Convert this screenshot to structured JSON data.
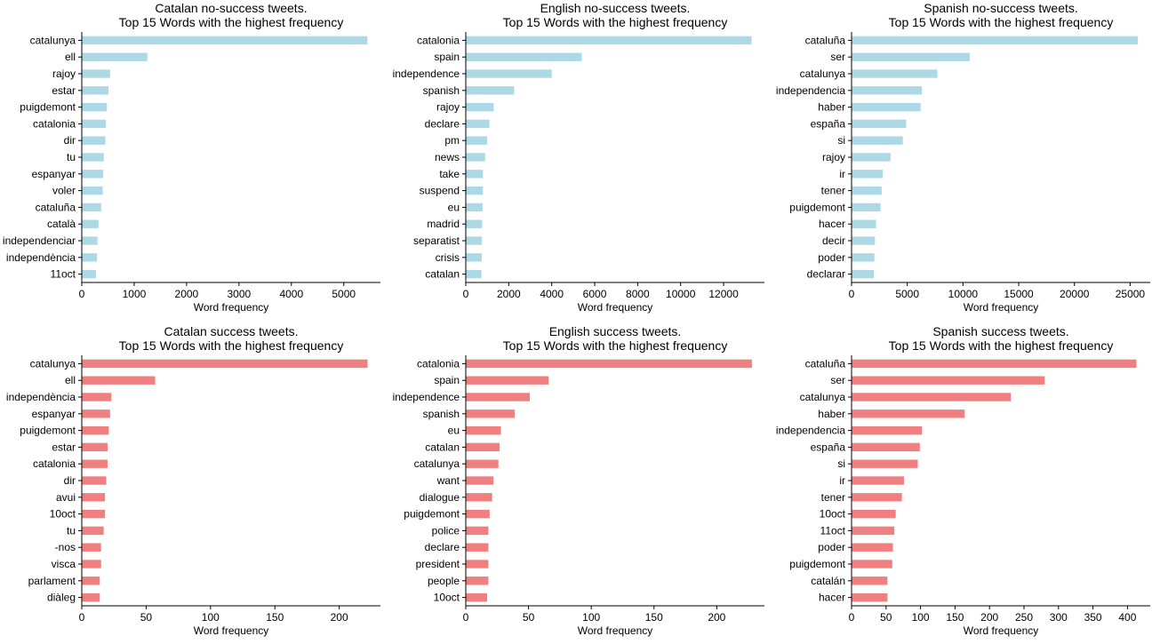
{
  "colors": {
    "no_success": "#add8e6",
    "success": "#f08080"
  },
  "chart_data": [
    {
      "type": "bar",
      "orientation": "horizontal",
      "title_line1": "Catalan no-success tweets.",
      "title_line2": "Top 15 Words with the highest frequency",
      "xlabel": "Word frequency",
      "xlim": [
        0,
        5700
      ],
      "xticks": [
        0,
        1000,
        2000,
        3000,
        4000,
        5000
      ],
      "color_key": "no_success",
      "categories": [
        "catalunya",
        "ell",
        "rajoy",
        "estar",
        "puigdemont",
        "catalonia",
        "dir",
        "tu",
        "espanyar",
        "voler",
        "cataluña",
        "català",
        "independenciar",
        "independència",
        "11oct"
      ],
      "values": [
        5450,
        1250,
        540,
        510,
        480,
        460,
        450,
        420,
        410,
        400,
        370,
        320,
        300,
        290,
        270
      ]
    },
    {
      "type": "bar",
      "orientation": "horizontal",
      "title_line1": "English no-success tweets.",
      "title_line2": "Top 15 Words with the highest frequency",
      "xlabel": "Word frequency",
      "xlim": [
        0,
        13900
      ],
      "xticks": [
        0,
        2000,
        4000,
        6000,
        8000,
        10000,
        12000
      ],
      "color_key": "no_success",
      "categories": [
        "catalonia",
        "spain",
        "independence",
        "spanish",
        "rajoy",
        "declare",
        "pm",
        "news",
        "take",
        "suspend",
        "eu",
        "madrid",
        "separatist",
        "crisis",
        "catalan"
      ],
      "values": [
        13300,
        5400,
        4000,
        2250,
        1300,
        1100,
        1000,
        900,
        800,
        800,
        780,
        760,
        750,
        740,
        730
      ]
    },
    {
      "type": "bar",
      "orientation": "horizontal",
      "title_line1": "Spanish no-success tweets.",
      "title_line2": "Top 15 Words with the highest frequency",
      "xlabel": "Word frequency",
      "xlim": [
        0,
        26800
      ],
      "xticks": [
        0,
        5000,
        10000,
        15000,
        20000,
        25000
      ],
      "color_key": "no_success",
      "categories": [
        "cataluña",
        "ser",
        "catalunya",
        "independencia",
        "haber",
        "españa",
        "si",
        "rajoy",
        "ir",
        "tener",
        "puigdemont",
        "hacer",
        "decir",
        "poder",
        "declarar"
      ],
      "values": [
        25700,
        10600,
        7700,
        6300,
        6200,
        4900,
        4600,
        3500,
        2800,
        2700,
        2600,
        2200,
        2100,
        2050,
        2000
      ]
    },
    {
      "type": "bar",
      "orientation": "horizontal",
      "title_line1": "Catalan success tweets.",
      "title_line2": "Top 15 Words with the highest frequency",
      "xlabel": "Word frequency",
      "xlim": [
        0,
        232
      ],
      "xticks": [
        0,
        50,
        100,
        150,
        200
      ],
      "color_key": "success",
      "categories": [
        "catalunya",
        "ell",
        "independència",
        "espanyar",
        "puigdemont",
        "estar",
        "catalonia",
        "dir",
        "avui",
        "10oct",
        "tu",
        "-nos",
        "visca",
        "parlament",
        "diàleg"
      ],
      "values": [
        222,
        57,
        23,
        22,
        21,
        20,
        20,
        19,
        18,
        18,
        17,
        15,
        15,
        14,
        14
      ]
    },
    {
      "type": "bar",
      "orientation": "horizontal",
      "title_line1": "English success tweets.",
      "title_line2": "Top 15 Words with the highest frequency",
      "xlabel": "Word frequency",
      "xlim": [
        0,
        238
      ],
      "xticks": [
        0,
        50,
        100,
        150,
        200
      ],
      "color_key": "success",
      "categories": [
        "catalonia",
        "spain",
        "independence",
        "spanish",
        "eu",
        "catalan",
        "catalunya",
        "want",
        "dialogue",
        "puigdemont",
        "police",
        "declare",
        "president",
        "people",
        "10oct"
      ],
      "values": [
        228,
        66,
        51,
        39,
        28,
        27,
        26,
        22,
        21,
        19,
        18,
        18,
        18,
        18,
        17
      ]
    },
    {
      "type": "bar",
      "orientation": "horizontal",
      "title_line1": "Spanish success tweets.",
      "title_line2": "Top 15 Words with the highest frequency",
      "xlabel": "Word frequency",
      "xlim": [
        0,
        433
      ],
      "xticks": [
        0,
        50,
        100,
        150,
        200,
        250,
        300,
        350,
        400
      ],
      "color_key": "success",
      "categories": [
        "cataluña",
        "ser",
        "catalunya",
        "haber",
        "independencia",
        "españa",
        "si",
        "ir",
        "tener",
        "10oct",
        "11oct",
        "poder",
        "puigdemont",
        "catalán",
        "hacer"
      ],
      "values": [
        413,
        280,
        231,
        164,
        102,
        99,
        96,
        76,
        73,
        64,
        62,
        60,
        59,
        52,
        52
      ]
    }
  ]
}
